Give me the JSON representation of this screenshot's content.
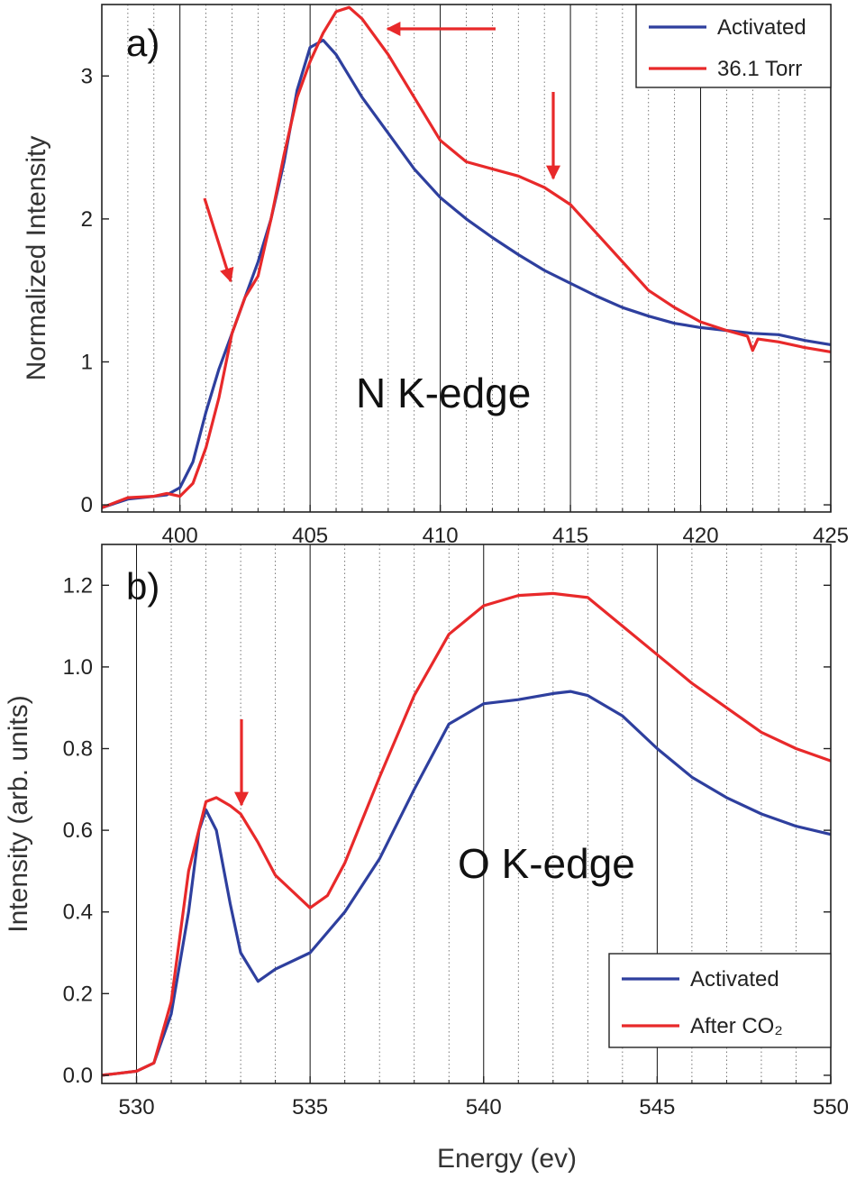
{
  "chart_data": [
    {
      "type": "line",
      "panel_label": "a)",
      "annotation": "N K-edge",
      "xlabel": "",
      "ylabel": "Normalized Intensity",
      "xlim": [
        397,
        425
      ],
      "ylim": [
        -0.05,
        3.5
      ],
      "x_ticks": [
        400,
        405,
        410,
        415,
        420,
        425
      ],
      "y_ticks": [
        0,
        1,
        2,
        3
      ],
      "grid": "major solid, minor dotted (vertical)",
      "legend": "top-right",
      "series": [
        {
          "name": "Activated",
          "color": "#2e3f9e",
          "points": [
            [
              397,
              -0.02
            ],
            [
              398,
              0.04
            ],
            [
              399,
              0.06
            ],
            [
              399.5,
              0.07
            ],
            [
              400,
              0.12
            ],
            [
              400.5,
              0.3
            ],
            [
              401,
              0.65
            ],
            [
              401.5,
              0.95
            ],
            [
              402,
              1.2
            ],
            [
              402.5,
              1.45
            ],
            [
              403,
              1.7
            ],
            [
              403.5,
              2.0
            ],
            [
              404,
              2.4
            ],
            [
              404.5,
              2.9
            ],
            [
              405,
              3.2
            ],
            [
              405.5,
              3.25
            ],
            [
              406,
              3.15
            ],
            [
              407,
              2.85
            ],
            [
              408,
              2.6
            ],
            [
              409,
              2.35
            ],
            [
              410,
              2.15
            ],
            [
              411,
              2.0
            ],
            [
              412,
              1.87
            ],
            [
              413,
              1.75
            ],
            [
              414,
              1.64
            ],
            [
              415,
              1.55
            ],
            [
              416,
              1.46
            ],
            [
              417,
              1.38
            ],
            [
              418,
              1.32
            ],
            [
              419,
              1.27
            ],
            [
              420,
              1.24
            ],
            [
              421,
              1.22
            ],
            [
              422,
              1.2
            ],
            [
              423,
              1.19
            ],
            [
              424,
              1.15
            ],
            [
              425,
              1.12
            ]
          ]
        },
        {
          "name": "36.1 Torr",
          "color": "#e8292a",
          "points": [
            [
              397,
              -0.02
            ],
            [
              398,
              0.05
            ],
            [
              399,
              0.06
            ],
            [
              399.5,
              0.08
            ],
            [
              400,
              0.06
            ],
            [
              400.5,
              0.15
            ],
            [
              401,
              0.4
            ],
            [
              401.5,
              0.75
            ],
            [
              402,
              1.2
            ],
            [
              402.5,
              1.45
            ],
            [
              403,
              1.6
            ],
            [
              403.5,
              2.0
            ],
            [
              404,
              2.45
            ],
            [
              404.5,
              2.85
            ],
            [
              405,
              3.1
            ],
            [
              405.5,
              3.3
            ],
            [
              406,
              3.45
            ],
            [
              406.5,
              3.48
            ],
            [
              407,
              3.4
            ],
            [
              408,
              3.15
            ],
            [
              409,
              2.85
            ],
            [
              410,
              2.55
            ],
            [
              411,
              2.4
            ],
            [
              412,
              2.35
            ],
            [
              413,
              2.3
            ],
            [
              414,
              2.22
            ],
            [
              415,
              2.1
            ],
            [
              416,
              1.9
            ],
            [
              417,
              1.7
            ],
            [
              418,
              1.5
            ],
            [
              419,
              1.38
            ],
            [
              420,
              1.28
            ],
            [
              421,
              1.22
            ],
            [
              421.8,
              1.18
            ],
            [
              422,
              1.08
            ],
            [
              422.2,
              1.16
            ],
            [
              423,
              1.14
            ],
            [
              424,
              1.1
            ],
            [
              425,
              1.07
            ]
          ]
        }
      ]
    },
    {
      "type": "line",
      "panel_label": "b)",
      "annotation": "O K-edge",
      "xlabel": "Energy (ev)",
      "ylabel": "Intensity (arb. units)",
      "xlim": [
        529,
        550
      ],
      "ylim": [
        -0.02,
        1.3
      ],
      "x_ticks": [
        530,
        535,
        540,
        545,
        550
      ],
      "y_ticks": [
        0.0,
        0.2,
        0.4,
        0.6,
        0.8,
        1.0,
        1.2
      ],
      "grid": "major solid, minor dotted (vertical)",
      "legend": "bottom-right",
      "series": [
        {
          "name": "Activated",
          "color": "#2e3f9e",
          "points": [
            [
              529,
              0.0
            ],
            [
              529.5,
              0.005
            ],
            [
              530,
              0.01
            ],
            [
              530.5,
              0.03
            ],
            [
              531,
              0.15
            ],
            [
              531.5,
              0.4
            ],
            [
              531.8,
              0.6
            ],
            [
              532,
              0.65
            ],
            [
              532.3,
              0.6
            ],
            [
              532.7,
              0.42
            ],
            [
              533,
              0.3
            ],
            [
              533.5,
              0.23
            ],
            [
              534,
              0.26
            ],
            [
              535,
              0.3
            ],
            [
              536,
              0.4
            ],
            [
              537,
              0.53
            ],
            [
              538,
              0.7
            ],
            [
              539,
              0.86
            ],
            [
              540,
              0.91
            ],
            [
              541,
              0.92
            ],
            [
              542,
              0.935
            ],
            [
              542.5,
              0.94
            ],
            [
              543,
              0.93
            ],
            [
              544,
              0.88
            ],
            [
              545,
              0.8
            ],
            [
              546,
              0.73
            ],
            [
              547,
              0.68
            ],
            [
              548,
              0.64
            ],
            [
              549,
              0.61
            ],
            [
              550,
              0.59
            ]
          ]
        },
        {
          "name": "After CO₂",
          "color": "#e8292a",
          "points": [
            [
              529,
              0.0
            ],
            [
              529.5,
              0.005
            ],
            [
              530,
              0.01
            ],
            [
              530.5,
              0.03
            ],
            [
              531,
              0.18
            ],
            [
              531.5,
              0.5
            ],
            [
              532,
              0.67
            ],
            [
              532.3,
              0.68
            ],
            [
              532.7,
              0.66
            ],
            [
              533,
              0.64
            ],
            [
              533.5,
              0.57
            ],
            [
              534,
              0.49
            ],
            [
              535,
              0.41
            ],
            [
              535.5,
              0.44
            ],
            [
              536,
              0.52
            ],
            [
              537,
              0.73
            ],
            [
              538,
              0.93
            ],
            [
              539,
              1.08
            ],
            [
              540,
              1.15
            ],
            [
              541,
              1.175
            ],
            [
              542,
              1.18
            ],
            [
              543,
              1.17
            ],
            [
              544,
              1.1
            ],
            [
              545,
              1.03
            ],
            [
              546,
              0.96
            ],
            [
              547,
              0.9
            ],
            [
              548,
              0.84
            ],
            [
              549,
              0.8
            ],
            [
              550,
              0.77
            ]
          ]
        }
      ]
    }
  ]
}
